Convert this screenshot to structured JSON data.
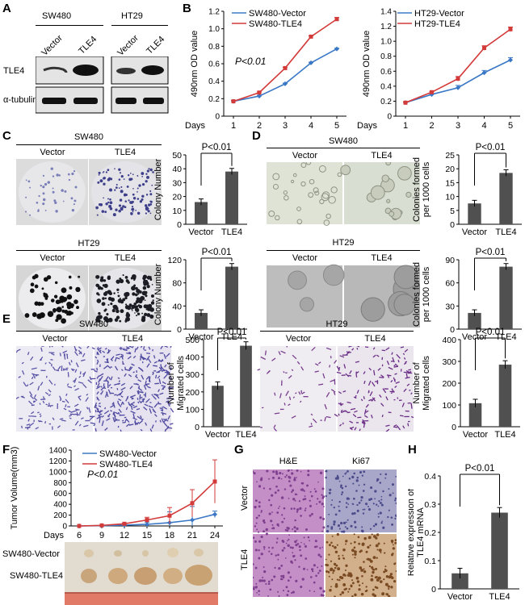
{
  "panels": {
    "a": "A",
    "b": "B",
    "c": "C",
    "d": "D",
    "e": "E",
    "f": "F",
    "g": "G",
    "h": "H"
  },
  "western": {
    "groups": [
      "SW480",
      "HT29"
    ],
    "lanes": [
      "Vector",
      "TLE4",
      "Vector",
      "TLE4"
    ],
    "rows": [
      "TLE4",
      "α-tubulin"
    ]
  },
  "labels": {
    "vector": "Vector",
    "tle4": "TLE4",
    "sw480": "SW480",
    "ht29": "HT29",
    "he": "H&E",
    "ki67": "Ki67",
    "sw480_vector": "SW480-Vector",
    "sw480_tle4": "SW480-TLE4"
  },
  "colors": {
    "blue": "#3a78c6",
    "red": "#d33a3a",
    "bar": "#505050",
    "purple": "#6a3d9a"
  },
  "chart_data": [
    {
      "id": "B1",
      "type": "line",
      "x": [
        1,
        2,
        3,
        4,
        5
      ],
      "xlabel": "Days",
      "ylabel": "490nm OD value",
      "ylim": [
        0,
        1.2
      ],
      "yticks": [
        "0",
        "0.2",
        "0.4",
        "0.6",
        "0.8",
        "1.0",
        "1.2"
      ],
      "annotation": "P<0.01",
      "series": [
        {
          "name": "SW480-Vector",
          "values": [
            0.17,
            0.23,
            0.37,
            0.61,
            0.77
          ]
        },
        {
          "name": "SW480-TLE4",
          "values": [
            0.17,
            0.27,
            0.55,
            0.91,
            1.11
          ]
        }
      ]
    },
    {
      "id": "B2",
      "type": "line",
      "x": [
        1,
        2,
        3,
        4,
        5
      ],
      "xlabel": "Days",
      "ylabel": "490nm OD value",
      "ylim": [
        0,
        1.4
      ],
      "yticks": [
        "0",
        "0.2",
        "0.4",
        "0.6",
        "0.8",
        "1.0",
        "1.2",
        "1.4"
      ],
      "series": [
        {
          "name": "HT29-Vector",
          "values": [
            0.18,
            0.29,
            0.38,
            0.58,
            0.75
          ]
        },
        {
          "name": "HT29-TLE4",
          "values": [
            0.18,
            0.32,
            0.5,
            0.91,
            1.16
          ]
        }
      ]
    },
    {
      "id": "C1",
      "type": "bar",
      "categories": [
        "Vector",
        "TLE4"
      ],
      "values": [
        16,
        38
      ],
      "ylabel": "Colony Number",
      "ylim": [
        0,
        50
      ],
      "yticks": [
        "0",
        "10",
        "20",
        "30",
        "40",
        "50"
      ],
      "annotation": "P<0.01"
    },
    {
      "id": "C2",
      "type": "bar",
      "categories": [
        "Vector",
        "TLE4"
      ],
      "values": [
        28,
        108
      ],
      "ylabel": "Colony Number",
      "ylim": [
        0,
        120
      ],
      "yticks": [
        "0",
        "40",
        "80",
        "120"
      ],
      "annotation": "P<0.01"
    },
    {
      "id": "D1",
      "type": "bar",
      "categories": [
        "Vector",
        "TLE4"
      ],
      "values": [
        7.5,
        18.5
      ],
      "ylabel": [
        "Colonies formed",
        "per 1000 cells"
      ],
      "ylim": [
        0,
        25
      ],
      "yticks": [
        "0",
        "5",
        "10",
        "15",
        "20",
        "25"
      ],
      "annotation": "P<0.01"
    },
    {
      "id": "D2",
      "type": "bar",
      "categories": [
        "Vector",
        "TLE4"
      ],
      "values": [
        21,
        81
      ],
      "ylabel": [
        "Colonies formed",
        "per 1000 cells"
      ],
      "ylim": [
        0,
        90
      ],
      "yticks": [
        "0",
        "30",
        "60",
        "90"
      ],
      "annotation": "P<0.01"
    },
    {
      "id": "E1",
      "type": "bar",
      "categories": [
        "Vector",
        "TLE4"
      ],
      "values": [
        235,
        465
      ],
      "ylabel": [
        "Number of",
        "Migrated cells"
      ],
      "ylim": [
        0,
        500
      ],
      "yticks": [
        "0",
        "100",
        "200",
        "300",
        "400",
        "500"
      ],
      "annotation": "P<0.01"
    },
    {
      "id": "E2",
      "type": "bar",
      "categories": [
        "Vector",
        "TLE4"
      ],
      "values": [
        108,
        285
      ],
      "ylabel": [
        "Number of",
        "Migrated cells"
      ],
      "ylim": [
        0,
        400
      ],
      "yticks": [
        "0",
        "100",
        "200",
        "300",
        "400"
      ],
      "annotation": "P<0.01"
    },
    {
      "id": "F",
      "type": "line",
      "x": [
        6,
        9,
        12,
        15,
        18,
        21,
        24
      ],
      "xlabel": "Days",
      "ylabel": "Tumor Volume(mm3)",
      "ylim": [
        0,
        1400
      ],
      "yticks": [
        "0",
        "200",
        "400",
        "600",
        "800",
        "1000",
        "1200",
        "1400"
      ],
      "annotation": "P<0.01",
      "series": [
        {
          "name": "SW480-Vector",
          "values": [
            0,
            5,
            15,
            30,
            60,
            110,
            215
          ]
        },
        {
          "name": "SW480-TLE4",
          "values": [
            0,
            10,
            40,
            110,
            190,
            420,
            820
          ]
        }
      ]
    },
    {
      "id": "H",
      "type": "bar",
      "categories": [
        "Vector",
        "TLE4"
      ],
      "values": [
        0.055,
        0.27
      ],
      "ylabel": [
        "Relative expression of",
        "TLE4 mRNA"
      ],
      "ylim": [
        0,
        0.4
      ],
      "yticks": [
        "0",
        "0.1",
        "0.2",
        "0.3",
        "0.4"
      ],
      "annotation": "P<0.01"
    }
  ]
}
